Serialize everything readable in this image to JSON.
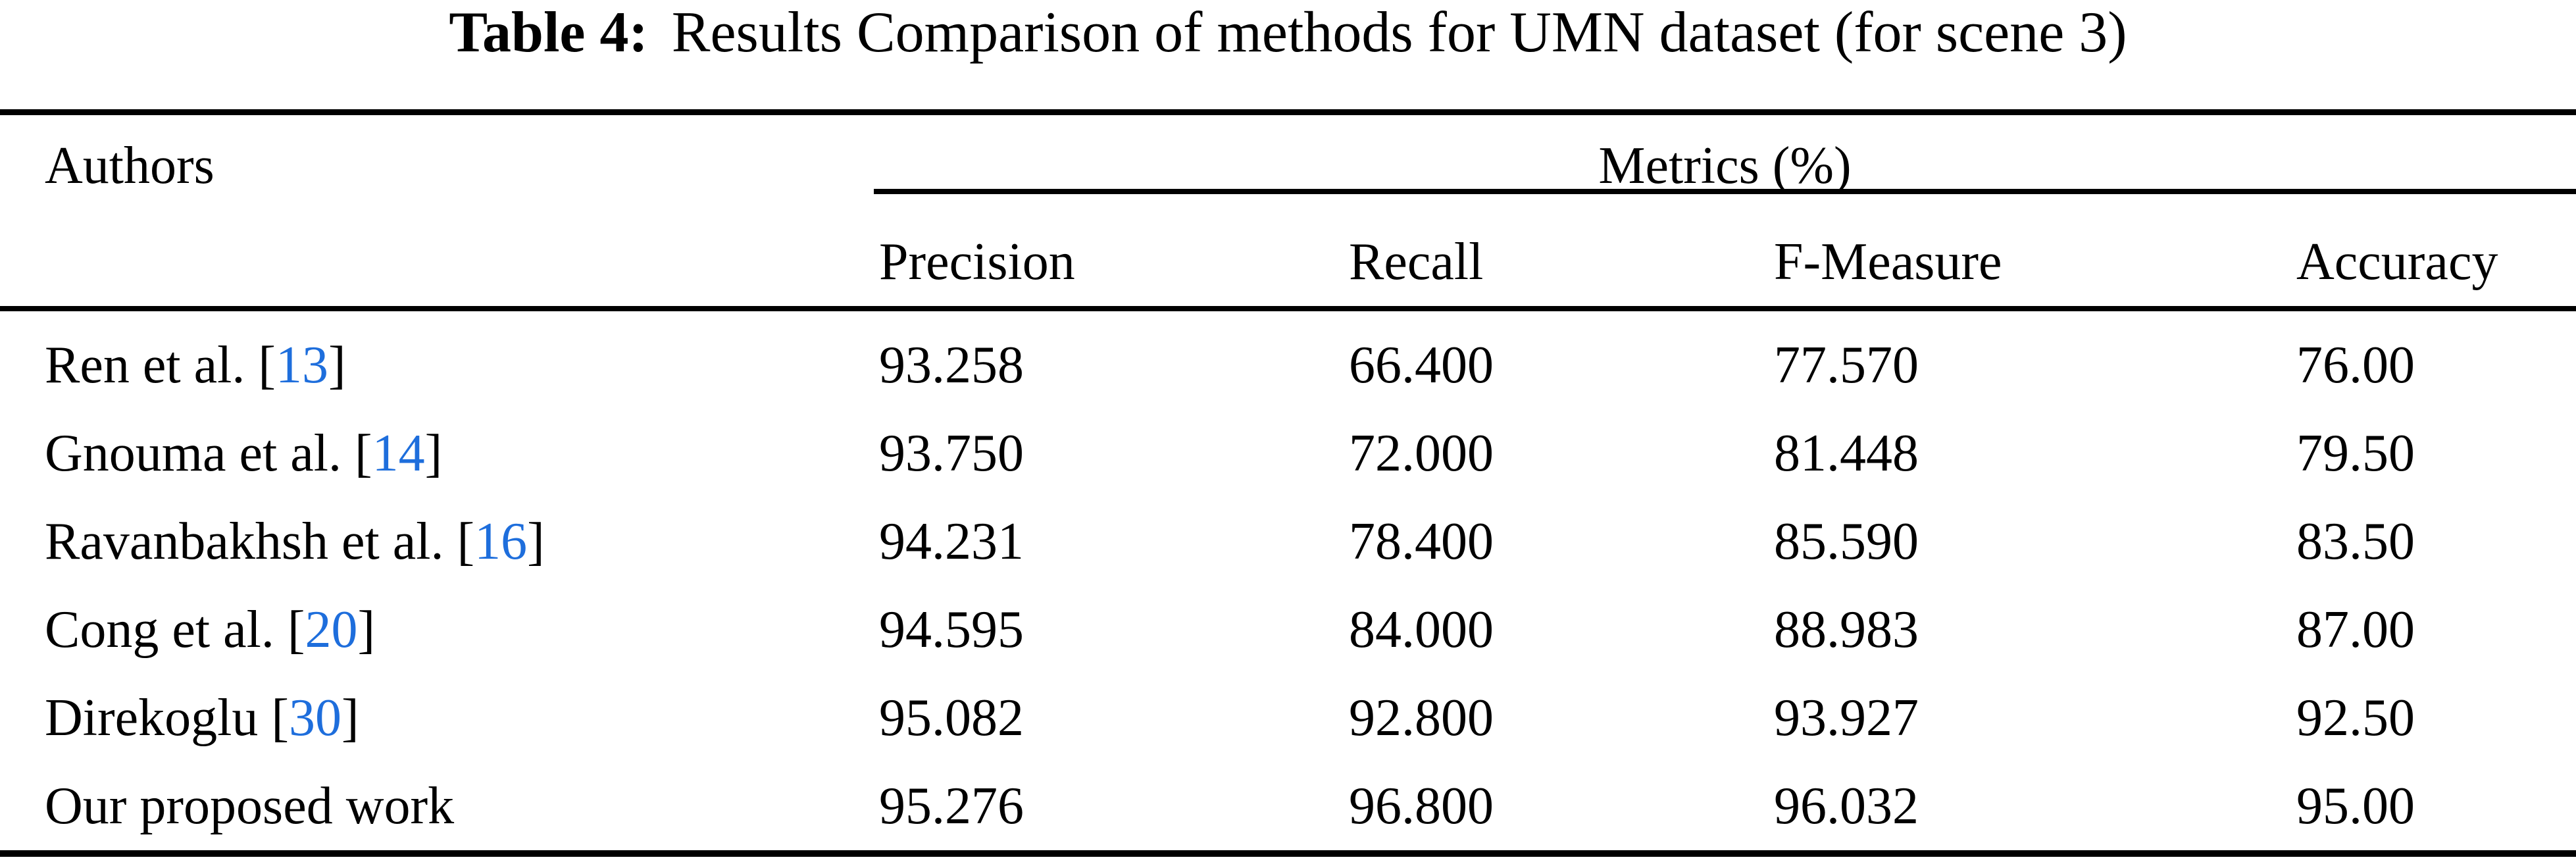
{
  "caption": {
    "label": "Table 4:",
    "text": "Results Comparison of methods for UMN dataset (for scene 3)"
  },
  "header": {
    "authors": "Authors",
    "metrics_group": "Metrics (%)"
  },
  "columns": [
    "Precision",
    "Recall",
    "F-Measure",
    "Accuracy"
  ],
  "rows": [
    {
      "author": "Ren et al. ",
      "bracket_open": "[",
      "cite": "13",
      "bracket_close": "]",
      "precision": "93.258",
      "recall": "66.400",
      "f_measure": "77.570",
      "accuracy": "76.00"
    },
    {
      "author": "Gnouma et al. ",
      "bracket_open": "[",
      "cite": "14",
      "bracket_close": "]",
      "precision": "93.750",
      "recall": "72.000",
      "f_measure": "81.448",
      "accuracy": "79.50"
    },
    {
      "author": "Ravanbakhsh et al. ",
      "bracket_open": "[",
      "cite": "16",
      "bracket_close": "]",
      "precision": "94.231",
      "recall": "78.400",
      "f_measure": "85.590",
      "accuracy": "83.50"
    },
    {
      "author": "Cong et al. ",
      "bracket_open": "[",
      "cite": "20",
      "bracket_close": "]",
      "precision": "94.595",
      "recall": "84.000",
      "f_measure": "88.983",
      "accuracy": "87.00"
    },
    {
      "author": "Direkoglu ",
      "bracket_open": "[",
      "cite": "30",
      "bracket_close": "]",
      "precision": "95.082",
      "recall": "92.800",
      "f_measure": "93.927",
      "accuracy": "92.50"
    },
    {
      "author": "Our proposed work",
      "precision": "95.276",
      "recall": "96.800",
      "f_measure": "96.032",
      "accuracy": "95.00"
    }
  ],
  "colors": {
    "citation_blue": "#1E6EDC",
    "text": "#000000",
    "background": "#FFFFFF"
  }
}
